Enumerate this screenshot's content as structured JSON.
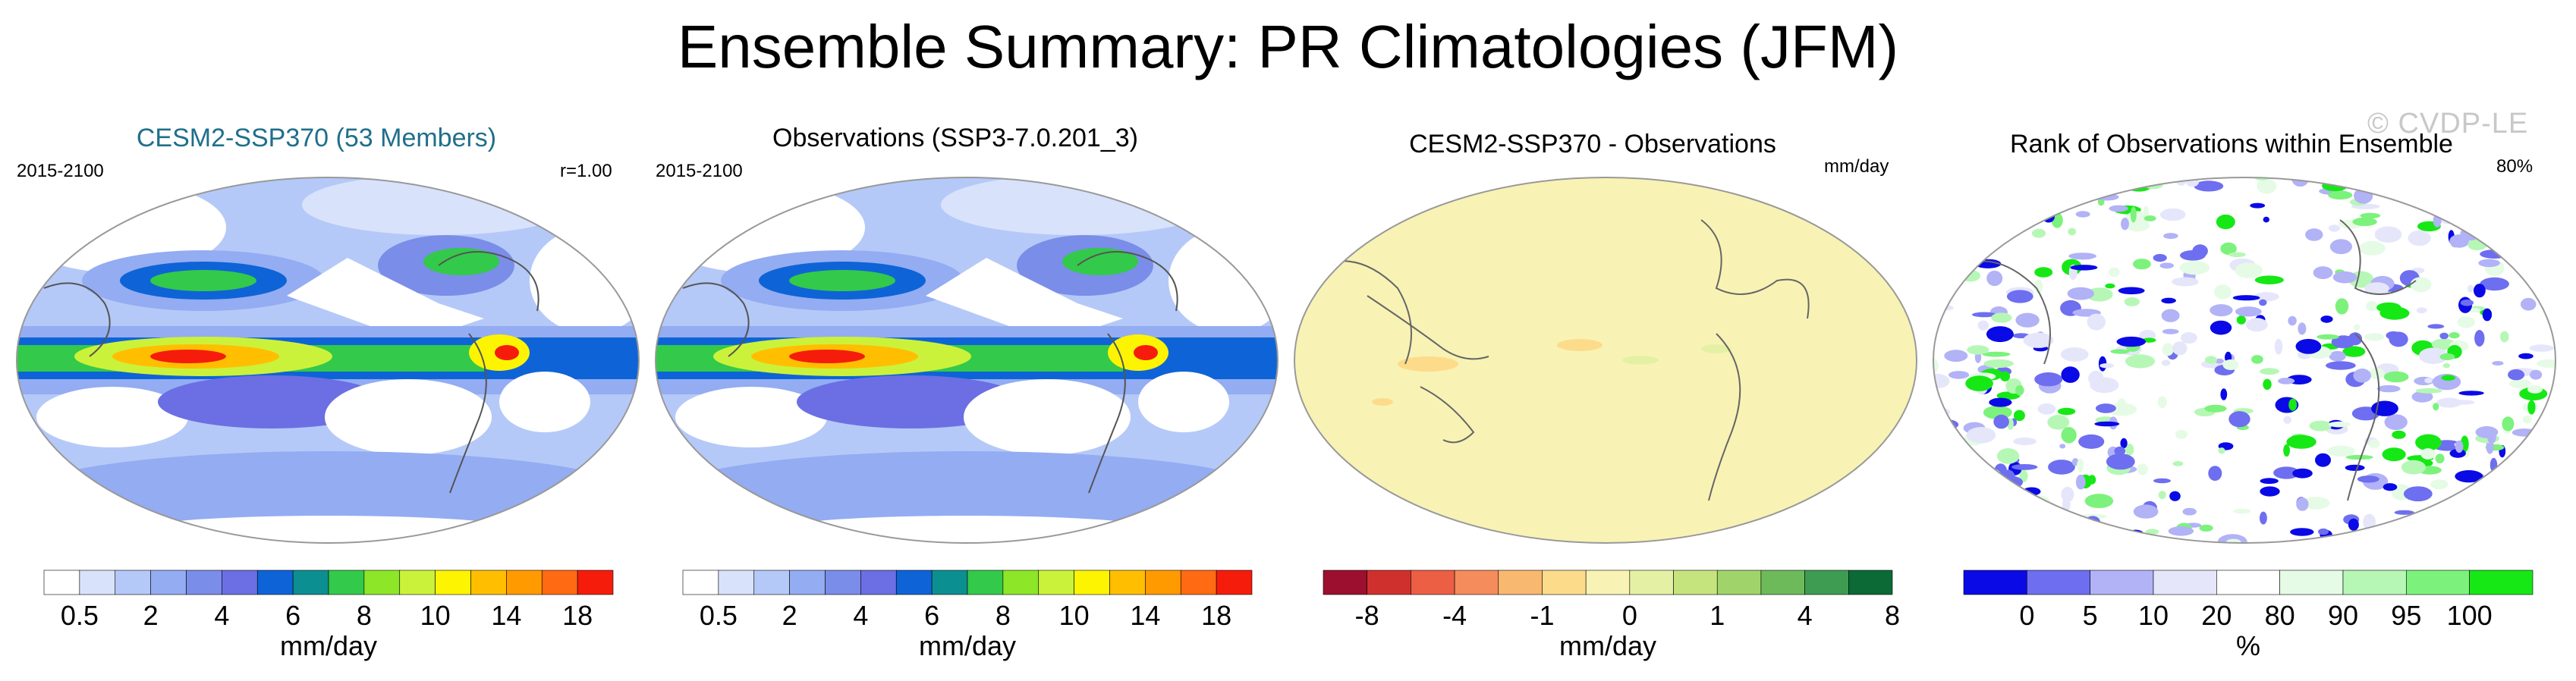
{
  "title": "Ensemble Summary: PR Climatologies (JFM)",
  "watermark": "© CVDP-LE",
  "panels": [
    {
      "id": "ens",
      "title": "CESM2-SSP370 (53 Members)",
      "title_color": "#1f6f8b",
      "left_label": "2015-2100",
      "right_label": "r=1.00"
    },
    {
      "id": "obs",
      "title": "Observations (SSP3-7.0.201_3)",
      "title_color": "#000000",
      "left_label": "2015-2100",
      "right_label": ""
    },
    {
      "id": "diff",
      "title": "CESM2-SSP370 - Observations",
      "title_color": "#000000",
      "left_label": "",
      "right_label": "mm/day"
    },
    {
      "id": "rank",
      "title": "Rank of Observations within Ensemble",
      "title_color": "#000000",
      "left_label": "",
      "right_label": "80%"
    }
  ],
  "chart_data": [
    {
      "type": "heatmap",
      "title": "CESM2-SSP370 (53 Members)",
      "period": "2015-2100",
      "pattern_correlation": "r=1.00",
      "units": "mm/day",
      "colorbar": {
        "boundaries": [
          0.5,
          1,
          2,
          3,
          4,
          5,
          6,
          7,
          8,
          9,
          10,
          12,
          14,
          16,
          18
        ],
        "tick_labels": [
          "0.5",
          "2",
          "4",
          "6",
          "8",
          "10",
          "14",
          "18"
        ],
        "colors": [
          "#ffffff",
          "#d8e2fb",
          "#b5c9f8",
          "#93acf2",
          "#7a8de8",
          "#6b6fe3",
          "#0e64d6",
          "#0c8f91",
          "#33c94a",
          "#8de627",
          "#cbf23a",
          "#fcf400",
          "#ffbf00",
          "#ff9a00",
          "#ff6a12",
          "#f51c0c"
        ]
      }
    },
    {
      "type": "heatmap",
      "title": "Observations (SSP3-7.0.201_3)",
      "period": "2015-2100",
      "units": "mm/day",
      "colorbar": {
        "boundaries": [
          0.5,
          1,
          2,
          3,
          4,
          5,
          6,
          7,
          8,
          9,
          10,
          12,
          14,
          16,
          18
        ],
        "tick_labels": [
          "0.5",
          "2",
          "4",
          "6",
          "8",
          "10",
          "14",
          "18"
        ],
        "colors": [
          "#ffffff",
          "#d8e2fb",
          "#b5c9f8",
          "#93acf2",
          "#7a8de8",
          "#6b6fe3",
          "#0e64d6",
          "#0c8f91",
          "#33c94a",
          "#8de627",
          "#cbf23a",
          "#fcf400",
          "#ffbf00",
          "#ff9a00",
          "#ff6a12",
          "#f51c0c"
        ]
      }
    },
    {
      "type": "heatmap",
      "title": "CESM2-SSP370 - Observations",
      "units": "mm/day",
      "colorbar": {
        "boundaries": [
          -8,
          -6,
          -4,
          -2,
          -1,
          -0.5,
          0,
          0.5,
          1,
          2,
          4,
          6,
          8
        ],
        "tick_labels": [
          "-8",
          "-4",
          "-1",
          "0",
          "1",
          "4",
          "8"
        ],
        "colors": [
          "#9c0f2e",
          "#d0302d",
          "#ec5f45",
          "#f58c5b",
          "#f9b870",
          "#fcdc8b",
          "#f8f3b4",
          "#e4f1a4",
          "#c6e47d",
          "#a0d46a",
          "#6dba5a",
          "#3d9c51",
          "#0b6a35"
        ]
      }
    },
    {
      "type": "heatmap",
      "title": "Rank of Observations within Ensemble",
      "summary": "80%",
      "units": "%",
      "colorbar": {
        "boundaries": [
          0,
          5,
          10,
          20,
          80,
          90,
          95,
          100
        ],
        "tick_labels": [
          "0",
          "5",
          "10",
          "20",
          "80",
          "90",
          "95",
          "100"
        ],
        "colors": [
          "#0a0ae6",
          "#6e6ef0",
          "#b2b2f7",
          "#e6e6fb",
          "#ffffff",
          "#e5fbe5",
          "#b6f7b6",
          "#7cf27c",
          "#16e816"
        ]
      }
    }
  ]
}
